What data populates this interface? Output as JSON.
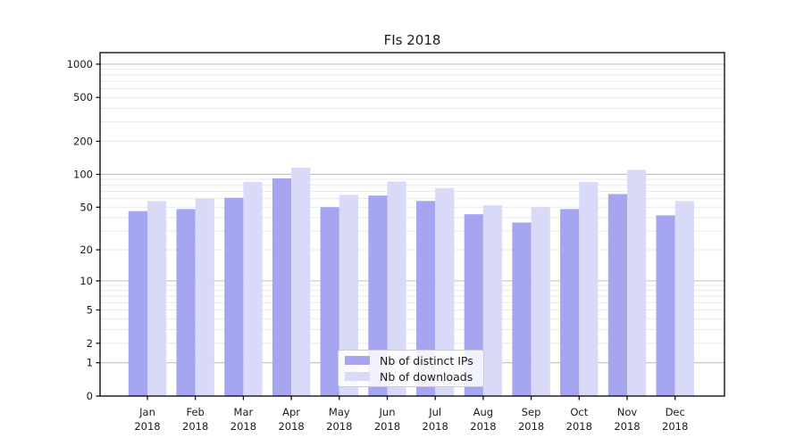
{
  "title": "FIs 2018",
  "chart_data": {
    "type": "bar",
    "title": "FIs 2018",
    "months": [
      "Jan",
      "Feb",
      "Mar",
      "Apr",
      "May",
      "Jun",
      "Jul",
      "Aug",
      "Sep",
      "Oct",
      "Nov",
      "Dec"
    ],
    "year": "2018",
    "series": [
      {
        "name": "Nb of distinct IPs",
        "color": "#a5a5f0",
        "values": [
          46,
          48,
          61,
          92,
          50,
          64,
          57,
          43,
          36,
          48,
          66,
          42
        ]
      },
      {
        "name": "Nb of downloads",
        "color": "#d9d9f8",
        "values": [
          57,
          60,
          85,
          115,
          65,
          86,
          75,
          52,
          50,
          85,
          110,
          57
        ]
      }
    ],
    "xlabel": "",
    "ylabel": "",
    "yscale": "log1p",
    "ylim": [
      0,
      1273
    ],
    "y_ticks": [
      0,
      1,
      2,
      5,
      10,
      20,
      50,
      100,
      200,
      500,
      1000
    ],
    "grid": {
      "on": true,
      "major_lines": [
        1,
        10,
        100,
        1000
      ],
      "minor_lines": [
        2,
        3,
        4,
        5,
        6,
        7,
        8,
        9,
        20,
        30,
        40,
        50,
        60,
        70,
        80,
        90,
        200,
        300,
        400,
        500,
        600,
        700,
        800,
        900
      ]
    },
    "legend_position": "lower center",
    "colors": {
      "spine": "#000000",
      "tick_text": "#1a1a1a",
      "major_grid": "#c0c0c0",
      "minor_grid": "#e9e9e9"
    }
  }
}
